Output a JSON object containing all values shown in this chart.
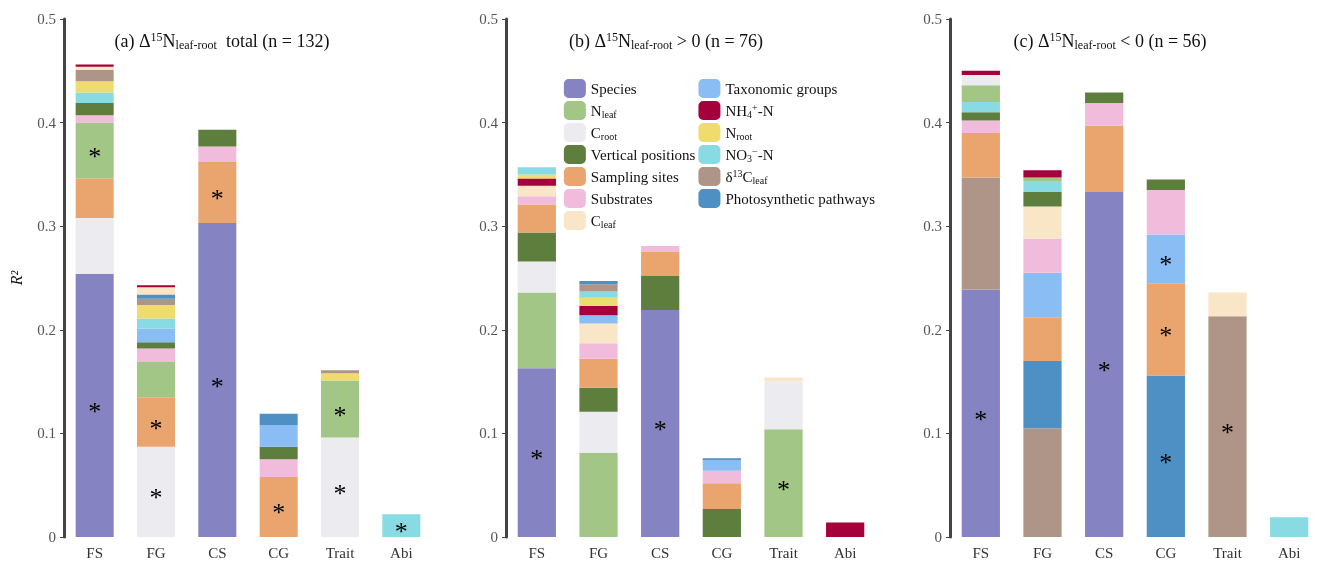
{
  "chart_data": [
    {
      "type": "bar",
      "stacked": true,
      "title": "(a) Δ$^{15}$N$_{leaf-root}$  total (n = 132)",
      "ylabel": "R²",
      "categories": [
        "FS",
        "FG",
        "CS",
        "CG",
        "Trait",
        "Abi"
      ],
      "ylim": [
        0,
        0.5
      ],
      "yticks": [
        0,
        0.1,
        0.2,
        0.3,
        0.4,
        0.5
      ],
      "series": [
        {
          "color": "#8583c1",
          "values": [
            0.254,
            null,
            0.303,
            null,
            null,
            null
          ],
          "value_labels": [
            "*",
            null,
            "*",
            null,
            null,
            null
          ]
        },
        {
          "color": "#ebebf0",
          "values": [
            0.054,
            0.087,
            null,
            null,
            0.096,
            null
          ],
          "value_labels": [
            null,
            "*",
            null,
            null,
            "*",
            null
          ]
        },
        {
          "color": "#eaa56f",
          "values": [
            0.038,
            0.048,
            0.059,
            0.058,
            null,
            null
          ],
          "value_labels": [
            null,
            "*",
            "*",
            "*",
            null,
            null
          ]
        },
        {
          "color": "#a2c686",
          "values": [
            0.054,
            0.034,
            null,
            null,
            0.055,
            null
          ],
          "value_labels": [
            "*",
            null,
            null,
            null,
            "*",
            null
          ]
        },
        {
          "color": "#f1bcdc",
          "values": [
            0.007,
            0.013,
            0.015,
            0.017,
            null,
            null
          ]
        },
        {
          "color": "#5e7e3e",
          "values": [
            0.012,
            0.006,
            0.016,
            0.012,
            null,
            null
          ]
        },
        {
          "color": "#8bbdf5",
          "values": [
            null,
            0.013,
            null,
            0.021,
            null,
            null
          ]
        },
        {
          "color": "#88dbe2",
          "values": [
            0.01,
            0.01,
            null,
            null,
            null,
            0.022
          ],
          "value_labels": [
            null,
            null,
            null,
            null,
            null,
            "*"
          ]
        },
        {
          "color": "#f0dc6e",
          "values": [
            0.011,
            0.013,
            null,
            null,
            0.007,
            null
          ]
        },
        {
          "color": "#ae9587",
          "values": [
            0.011,
            0.006,
            null,
            null,
            0.003,
            null
          ]
        },
        {
          "color": "#4e8fc4",
          "values": [
            null,
            0.004,
            null,
            0.011,
            null,
            null
          ]
        },
        {
          "color": "#f9e6c7",
          "values": [
            0.003,
            0.007,
            null,
            null,
            null,
            null
          ]
        },
        {
          "color": "#a5003b",
          "values": [
            0.002,
            0.002,
            null,
            null,
            null,
            null
          ]
        }
      ]
    },
    {
      "type": "bar",
      "stacked": true,
      "title": "(b) Δ$^{15}$N$_{leaf-root}$ > 0 (n = 76)",
      "categories": [
        "FS",
        "FG",
        "CS",
        "CG",
        "Trait",
        "Abi"
      ],
      "ylim": [
        0,
        0.5
      ],
      "yticks": [
        0,
        0.1,
        0.2,
        0.3,
        0.4,
        0.5
      ],
      "legend": "top right",
      "series": [
        {
          "name": "Species",
          "color": "#8583c1",
          "values": [
            0.163,
            null,
            0.219,
            null,
            null,
            null
          ],
          "value_labels": [
            "*",
            null,
            "*",
            null,
            null,
            null
          ]
        },
        {
          "name": "N$_{leaf}$",
          "color": "#a2c686",
          "values": [
            0.073,
            0.081,
            null,
            null,
            0.104,
            null
          ],
          "value_labels": [
            null,
            null,
            null,
            null,
            "*",
            null
          ]
        },
        {
          "name": "C$_{root}$",
          "color": "#ebebf0",
          "values": [
            0.03,
            0.04,
            null,
            null,
            0.046,
            null
          ]
        },
        {
          "name": "Vertical positions",
          "color": "#5e7e3e",
          "values": [
            0.028,
            0.023,
            0.033,
            0.027,
            null,
            null
          ]
        },
        {
          "name": "Sampling sites",
          "color": "#eaa56f",
          "values": [
            0.027,
            0.028,
            0.023,
            0.025,
            null,
            null
          ]
        },
        {
          "name": "Substrates",
          "color": "#f1bcdc",
          "values": [
            0.008,
            0.015,
            0.006,
            0.012,
            null,
            null
          ]
        },
        {
          "name": "C$_{leaf}$",
          "color": "#f9e6c7",
          "values": [
            0.01,
            0.019,
            null,
            null,
            0.004,
            null
          ]
        },
        {
          "name": "Taxonomic groups",
          "color": "#8bbdf5",
          "values": [
            null,
            0.008,
            null,
            0.01,
            null,
            null
          ]
        },
        {
          "name": "NH$_{4}$$^{+}$-N",
          "color": "#a5003b",
          "values": [
            0.007,
            0.009,
            null,
            null,
            null,
            0.014
          ]
        },
        {
          "name": "N$_{root}$",
          "color": "#f0dc6e",
          "values": [
            0.004,
            0.008,
            null,
            null,
            null,
            null
          ]
        },
        {
          "name": "NO$_{3}$$^{−}$-N",
          "color": "#88dbe2",
          "values": [
            0.007,
            0.006,
            null,
            null,
            null,
            null
          ]
        },
        {
          "name": "δ$^{13}$C$_{leaf}$",
          "color": "#ae9587",
          "values": [
            null,
            0.007,
            null,
            null,
            null,
            null
          ]
        },
        {
          "name": "Photosynthetic pathways",
          "color": "#4e8fc4",
          "values": [
            null,
            0.003,
            null,
            0.002,
            null,
            null
          ]
        }
      ]
    },
    {
      "type": "bar",
      "stacked": true,
      "title": "(c) Δ$^{15}$N$_{leaf-root}$ < 0 (n = 56)",
      "categories": [
        "FS",
        "FG",
        "CS",
        "CG",
        "Trait",
        "Abi"
      ],
      "ylim": [
        0,
        0.5
      ],
      "yticks": [
        0,
        0.1,
        0.2,
        0.3,
        0.4,
        0.5
      ],
      "series": [
        {
          "color": "#8583c1",
          "values": [
            0.239,
            null,
            0.333,
            null,
            null,
            null
          ],
          "value_labels": [
            "*",
            null,
            "*",
            null,
            null,
            null
          ]
        },
        {
          "color": "#ae9587",
          "values": [
            0.108,
            0.105,
            null,
            null,
            0.213,
            null
          ],
          "value_labels": [
            null,
            null,
            null,
            null,
            "*",
            null
          ]
        },
        {
          "color": "#4e8fc4",
          "values": [
            null,
            0.065,
            null,
            0.156,
            null,
            null
          ],
          "value_labels": [
            null,
            null,
            null,
            "*",
            null,
            null
          ]
        },
        {
          "color": "#eaa56f",
          "values": [
            0.043,
            0.042,
            0.064,
            0.089,
            null,
            null
          ],
          "value_labels": [
            null,
            null,
            null,
            "*",
            null,
            null
          ]
        },
        {
          "color": "#8bbdf5",
          "values": [
            null,
            0.043,
            null,
            0.047,
            null,
            null
          ],
          "value_labels": [
            null,
            null,
            null,
            "*",
            null,
            null
          ]
        },
        {
          "color": "#f1bcdc",
          "values": [
            0.012,
            0.033,
            0.022,
            0.043,
            null,
            null
          ]
        },
        {
          "color": "#f9e6c7",
          "values": [
            null,
            0.031,
            null,
            null,
            0.023,
            null
          ]
        },
        {
          "color": "#5e7e3e",
          "values": [
            0.008,
            0.014,
            0.01,
            0.01,
            null,
            null
          ]
        },
        {
          "color": "#88dbe2",
          "values": [
            0.01,
            0.01,
            null,
            null,
            null,
            0.019
          ]
        },
        {
          "color": "#a2c686",
          "values": [
            0.016,
            0.004,
            null,
            null,
            null,
            null
          ]
        },
        {
          "color": "#ebebf0",
          "values": [
            0.01,
            null,
            null,
            null,
            null,
            null
          ]
        },
        {
          "color": "#a5003b",
          "values": [
            0.004,
            0.007,
            null,
            null,
            null,
            null
          ]
        }
      ]
    }
  ]
}
